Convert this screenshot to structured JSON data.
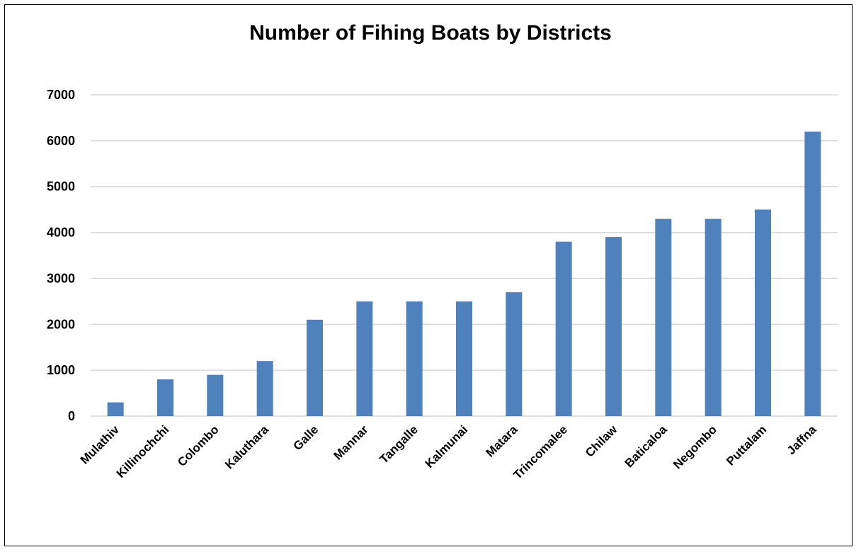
{
  "chart_data": {
    "type": "bar",
    "title": "Number of Fihing Boats by Districts",
    "xlabel": "",
    "ylabel": "",
    "ylim": [
      0,
      7000
    ],
    "yticks": [
      0,
      1000,
      2000,
      3000,
      4000,
      5000,
      6000,
      7000
    ],
    "grid": true,
    "legend": "none",
    "categories": [
      "Mulathiv",
      "Killinochchi",
      "Colombo",
      "Kaluthara",
      "Galle",
      "Mannar",
      "Tangalle",
      "Kalmunai",
      "Matara",
      "Trincomalee",
      "Chilaw",
      "Baticaloa",
      "Negombo",
      "Puttalam",
      "Jaffna"
    ],
    "values": [
      300,
      800,
      900,
      1200,
      2100,
      2500,
      2500,
      2500,
      2700,
      3800,
      3900,
      4300,
      4300,
      4500,
      6200
    ],
    "bar_color": "#4f81bd",
    "grid_color": "#d9d9d9"
  }
}
